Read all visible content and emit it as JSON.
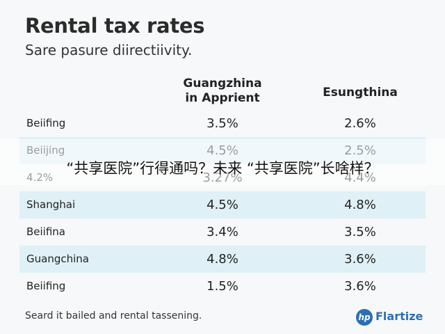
{
  "header": {
    "title": "Rental tax rates",
    "subtitle": "Sare pasure diirectiivity."
  },
  "table": {
    "columns": [
      [
        "Guangzhina",
        "in Apprient"
      ],
      [
        "Esungthina"
      ]
    ],
    "rows": [
      [
        "Beiifing",
        "3.5%",
        "2.6%"
      ],
      [
        "Beiijing",
        "4.5%",
        "2.5%"
      ],
      [
        "4.2%",
        "3.27%",
        "4.4%"
      ],
      [
        "Shanghai",
        "4.5%",
        "4.8%"
      ],
      [
        "Beiifina",
        "3.4%",
        "3.5%"
      ],
      [
        "Guangchina",
        "4.8%",
        "3.6%"
      ],
      [
        "Beiifing",
        "1.5%",
        "3.6%"
      ]
    ]
  },
  "overlay": "“共享医院”行得通吗？未来 “共享医院”长啥样？",
  "footer": "Seard it bailed and rental tassening.",
  "logo": {
    "icon": "hp",
    "name": "Flartize"
  }
}
